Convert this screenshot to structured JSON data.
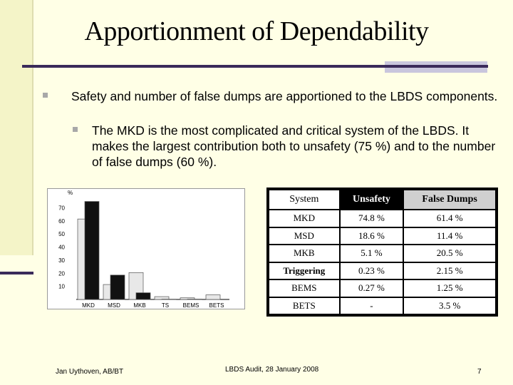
{
  "title": "Apportionment of Dependability",
  "bullets": {
    "level1": "Safety and number of false dumps are apportioned to the LBDS components.",
    "level2": "The MKD is the most complicated and critical system of the LBDS. It makes the largest contribution both to unsafety (75 %) and to the number of false dumps (60 %)."
  },
  "chart_data": {
    "type": "bar",
    "ylabel": "%",
    "categories": [
      "MKD",
      "MSD",
      "MKB",
      "TS",
      "BEMS",
      "BETS"
    ],
    "yticks": [
      10,
      20,
      30,
      40,
      50,
      60,
      70
    ],
    "ylim": [
      0,
      80
    ],
    "series": [
      {
        "name": "False Dumps",
        "values": [
          61.4,
          11.4,
          20.5,
          2.15,
          1.25,
          3.5
        ],
        "color": "#e8e8e8"
      },
      {
        "name": "Unsafety",
        "values": [
          74.8,
          18.6,
          5.1,
          0.23,
          0.27,
          0
        ],
        "color": "#111111"
      }
    ]
  },
  "table": {
    "headers": [
      "System",
      "Unsafety",
      "False Dumps"
    ],
    "rows": [
      [
        "MKD",
        "74.8 %",
        "61.4 %"
      ],
      [
        "MSD",
        "18.6 %",
        "11.4 %"
      ],
      [
        "MKB",
        "5.1 %",
        "20.5 %"
      ],
      [
        "Triggering",
        "0.23 %",
        "2.15 %"
      ],
      [
        "BEMS",
        "0.27 %",
        "1.25 %"
      ],
      [
        "BETS",
        "-",
        "3.5 %"
      ]
    ]
  },
  "footer": {
    "author": "Jan Uythoven, AB/BT",
    "event": "LBDS Audit, 28 January 2008",
    "page": "7"
  },
  "colors": {
    "background": "#ffffe6",
    "accent_line": "#3a2a5a",
    "accent_block": "#c9c6dd"
  }
}
